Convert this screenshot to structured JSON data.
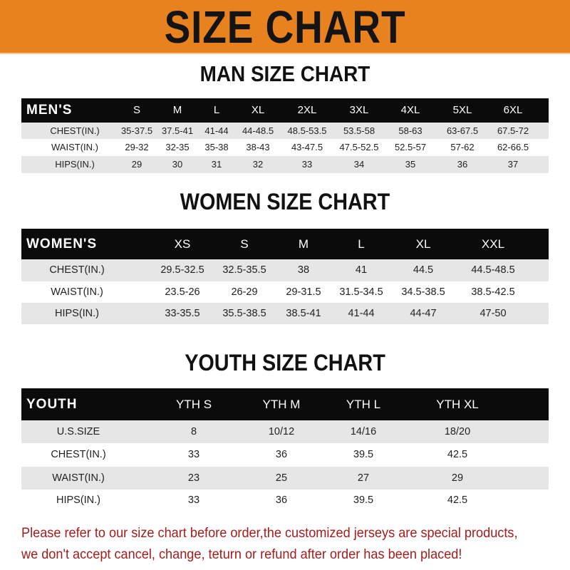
{
  "banner_title": "SIZE CHART",
  "colors": {
    "banner": "#e8821f",
    "header_row": "#0b0b0b",
    "stripe": "#e6e6e6",
    "notice": "#a51c1c"
  },
  "men": {
    "title": "MAN SIZE CHART",
    "header": [
      "MEN'S",
      "S",
      "M",
      "L",
      "XL",
      "2XL",
      "3XL",
      "4XL",
      "5XL",
      "6XL"
    ],
    "rows": [
      [
        "CHEST(IN.)",
        "35-37.5",
        "37.5-41",
        "41-44",
        "44-48.5",
        "48.5-53.5",
        "53.5-58",
        "58-63",
        "63-67.5",
        "67.5-72"
      ],
      [
        "WAIST(IN.)",
        "29-32",
        "32-35",
        "35-38",
        "38-43",
        "43-47.5",
        "47.5-52.5",
        "52.5-57",
        "57-62",
        "62-66.5"
      ],
      [
        "HIPS(IN.)",
        "29",
        "30",
        "31",
        "32",
        "33",
        "34",
        "35",
        "36",
        "37"
      ]
    ]
  },
  "women": {
    "title": "WOMEN SIZE CHART",
    "header": [
      "WOMEN'S",
      "XS",
      "S",
      "M",
      "L",
      "XL",
      "XXL"
    ],
    "rows": [
      [
        "CHEST(IN.)",
        "29.5-32.5",
        "32.5-35.5",
        "38",
        "41",
        "44.5",
        "44.5-48.5"
      ],
      [
        "WAIST(IN.)",
        "23.5-26",
        "26-29",
        "29-31.5",
        "31.5-34.5",
        "34.5-38.5",
        "38.5-42.5"
      ],
      [
        "HIPS(IN.)",
        "33-35.5",
        "35.5-38.5",
        "38.5-41",
        "41-44",
        "44-47",
        "47-50"
      ]
    ]
  },
  "youth": {
    "title": "YOUTH SIZE CHART",
    "header": [
      "YOUTH",
      "YTH S",
      "YTH M",
      "YTH L",
      "YTH XL"
    ],
    "rows": [
      [
        "U.S.SIZE",
        "8",
        "10/12",
        "14/16",
        "18/20"
      ],
      [
        "CHEST(IN.)",
        "33",
        "36",
        "39.5",
        "42.5"
      ],
      [
        "WAIST(IN.)",
        "23",
        "25",
        "27",
        "29"
      ],
      [
        "HIPS(IN.)",
        "33",
        "36",
        "39.5",
        "42.5"
      ]
    ]
  },
  "notice": {
    "line1": "Please refer to our size chart before order,the customized jerseys are special products,",
    "line2": "we don't accept cancel, change, teturn or refund after order has been placed!"
  }
}
